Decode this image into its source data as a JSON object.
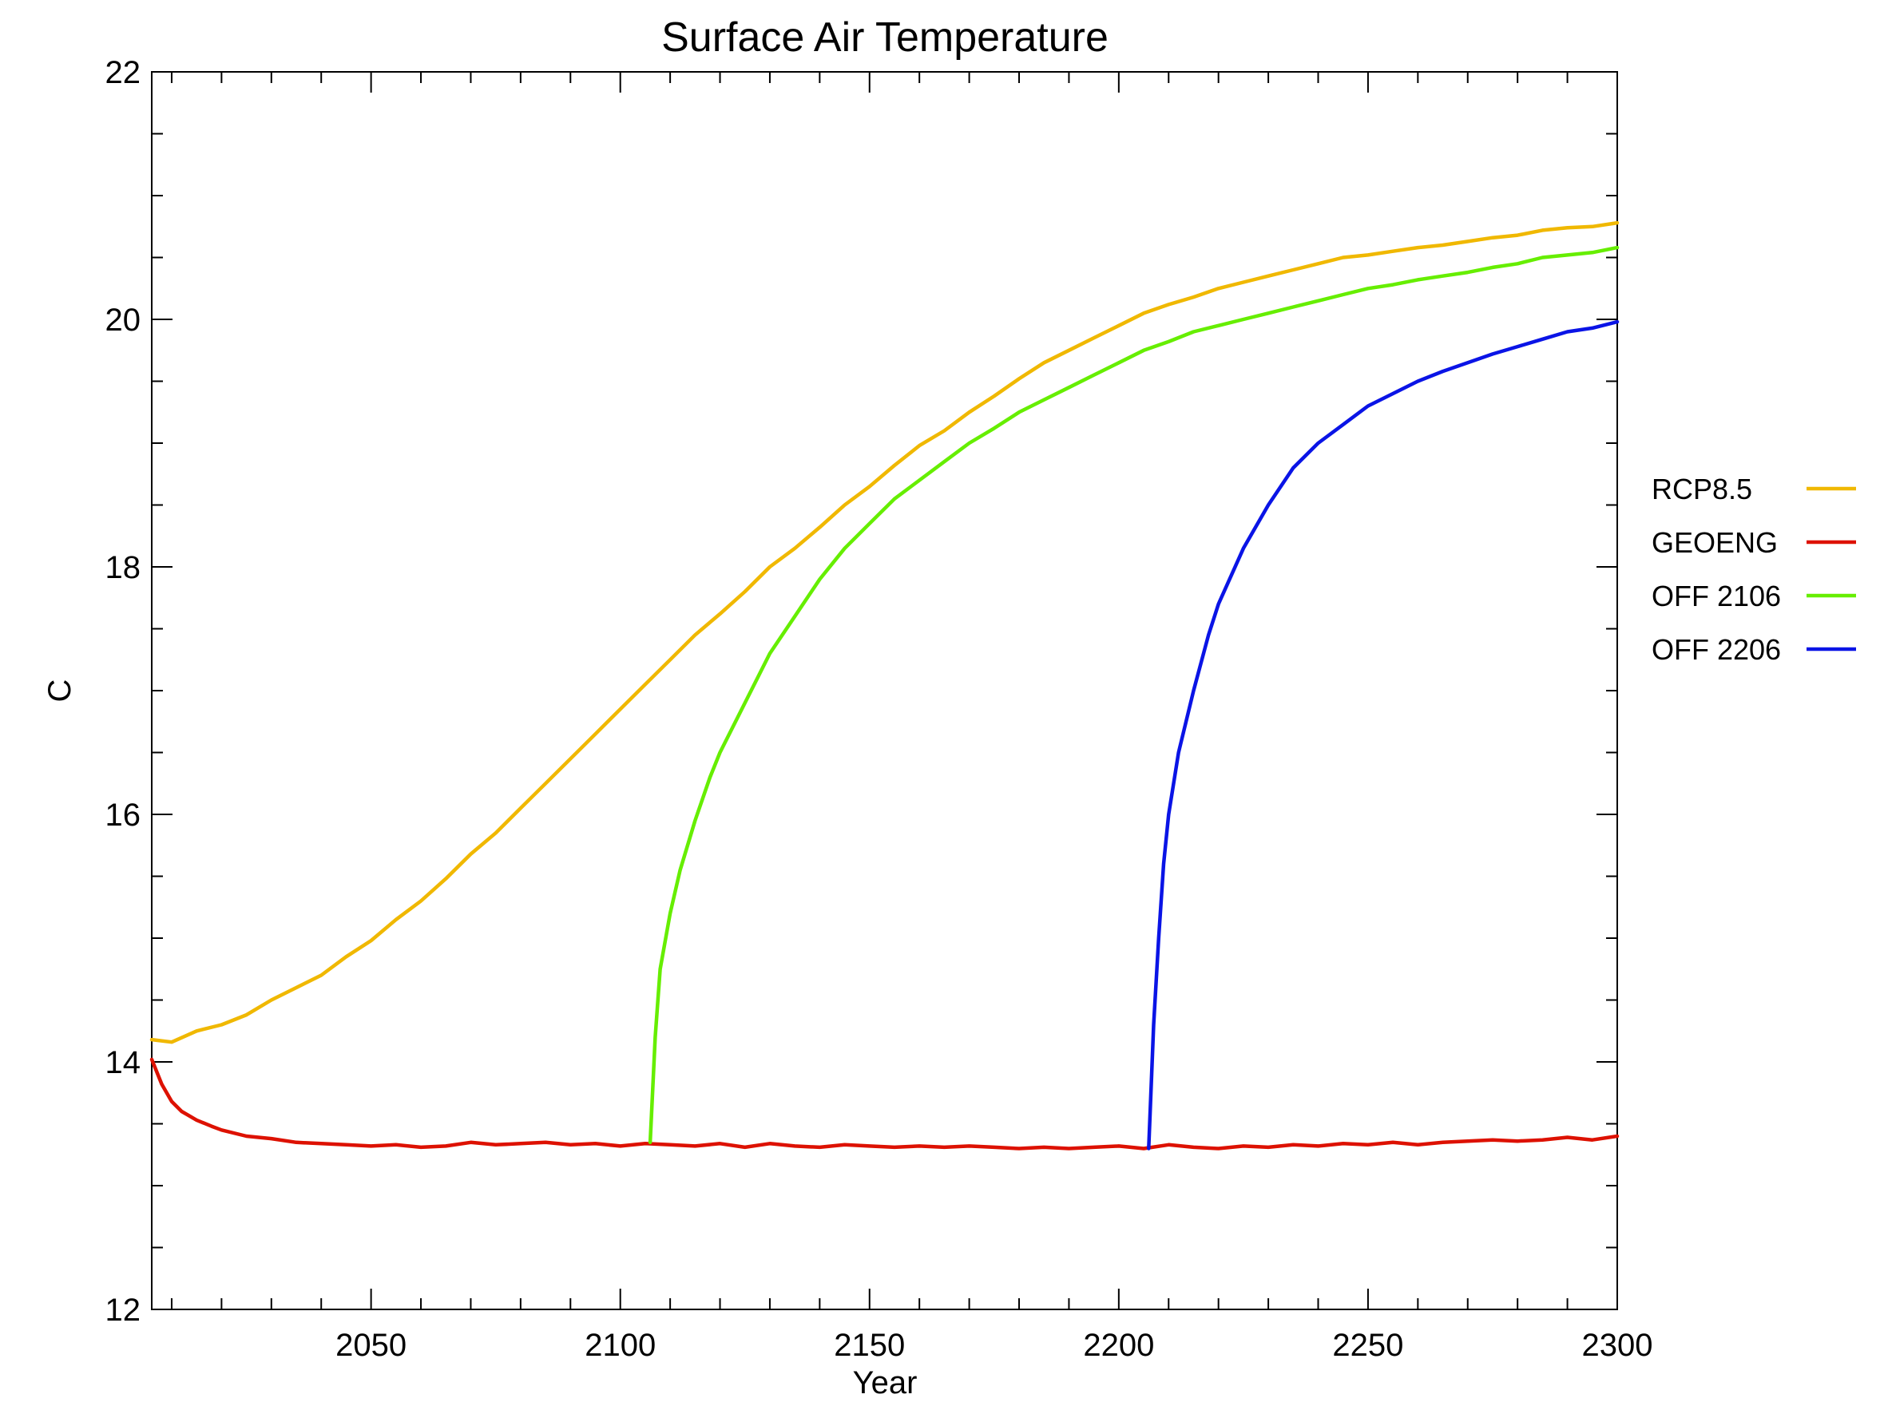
{
  "chart_data": {
    "type": "line",
    "title": "Surface Air Temperature",
    "xlabel": "Year",
    "ylabel": "C",
    "xlim": [
      2006,
      2300
    ],
    "ylim": [
      12,
      22
    ],
    "xticks": [
      2050,
      2100,
      2150,
      2200,
      2250,
      2300
    ],
    "yticks": [
      12,
      14,
      16,
      18,
      20,
      22
    ],
    "grid": false,
    "legend": "right",
    "series": [
      {
        "name": "RCP8.5",
        "color": "#f0b800",
        "x": [
          2006,
          2010,
          2015,
          2020,
          2025,
          2030,
          2035,
          2040,
          2045,
          2050,
          2055,
          2060,
          2065,
          2070,
          2075,
          2080,
          2085,
          2090,
          2095,
          2100,
          2105,
          2110,
          2115,
          2120,
          2125,
          2130,
          2135,
          2140,
          2145,
          2150,
          2155,
          2160,
          2165,
          2170,
          2175,
          2180,
          2185,
          2190,
          2195,
          2200,
          2205,
          2210,
          2215,
          2220,
          2225,
          2230,
          2235,
          2240,
          2245,
          2250,
          2255,
          2260,
          2265,
          2270,
          2275,
          2280,
          2285,
          2290,
          2295,
          2300
        ],
        "y": [
          14.18,
          14.16,
          14.25,
          14.3,
          14.38,
          14.5,
          14.6,
          14.7,
          14.85,
          14.98,
          15.15,
          15.3,
          15.48,
          15.68,
          15.85,
          16.05,
          16.25,
          16.45,
          16.65,
          16.85,
          17.05,
          17.25,
          17.45,
          17.62,
          17.8,
          18.0,
          18.15,
          18.32,
          18.5,
          18.65,
          18.82,
          18.98,
          19.1,
          19.25,
          19.38,
          19.52,
          19.65,
          19.75,
          19.85,
          19.95,
          20.05,
          20.12,
          20.18,
          20.25,
          20.3,
          20.35,
          20.4,
          20.45,
          20.5,
          20.52,
          20.55,
          20.58,
          20.6,
          20.63,
          20.66,
          20.68,
          20.72,
          20.74,
          20.75,
          20.78
        ]
      },
      {
        "name": "GEOENG",
        "color": "#dd1100",
        "x": [
          2006,
          2008,
          2010,
          2012,
          2015,
          2018,
          2020,
          2025,
          2030,
          2035,
          2040,
          2045,
          2050,
          2055,
          2060,
          2065,
          2070,
          2075,
          2080,
          2085,
          2090,
          2095,
          2100,
          2105,
          2110,
          2115,
          2120,
          2125,
          2130,
          2135,
          2140,
          2145,
          2150,
          2155,
          2160,
          2165,
          2170,
          2175,
          2180,
          2185,
          2190,
          2195,
          2200,
          2205,
          2210,
          2215,
          2220,
          2225,
          2230,
          2235,
          2240,
          2245,
          2250,
          2255,
          2260,
          2265,
          2270,
          2275,
          2280,
          2285,
          2290,
          2295,
          2300
        ],
        "y": [
          14.02,
          13.82,
          13.68,
          13.6,
          13.53,
          13.48,
          13.45,
          13.4,
          13.38,
          13.35,
          13.34,
          13.33,
          13.32,
          13.33,
          13.31,
          13.32,
          13.35,
          13.33,
          13.34,
          13.35,
          13.33,
          13.34,
          13.32,
          13.34,
          13.33,
          13.32,
          13.34,
          13.31,
          13.34,
          13.32,
          13.31,
          13.33,
          13.32,
          13.31,
          13.32,
          13.31,
          13.32,
          13.31,
          13.3,
          13.31,
          13.3,
          13.31,
          13.32,
          13.3,
          13.33,
          13.31,
          13.3,
          13.32,
          13.31,
          13.33,
          13.32,
          13.34,
          13.33,
          13.35,
          13.33,
          13.35,
          13.36,
          13.37,
          13.36,
          13.37,
          13.39,
          13.37,
          13.4
        ]
      },
      {
        "name": "OFF 2106",
        "color": "#66ee00",
        "x": [
          2106,
          2107,
          2108,
          2110,
          2112,
          2115,
          2118,
          2120,
          2125,
          2130,
          2135,
          2140,
          2145,
          2150,
          2155,
          2160,
          2165,
          2170,
          2175,
          2180,
          2185,
          2190,
          2195,
          2200,
          2205,
          2210,
          2215,
          2220,
          2225,
          2230,
          2235,
          2240,
          2245,
          2250,
          2255,
          2260,
          2265,
          2270,
          2275,
          2280,
          2285,
          2290,
          2295,
          2300
        ],
        "y": [
          13.35,
          14.2,
          14.75,
          15.2,
          15.55,
          15.95,
          16.3,
          16.5,
          16.9,
          17.3,
          17.6,
          17.9,
          18.15,
          18.35,
          18.55,
          18.7,
          18.85,
          19.0,
          19.12,
          19.25,
          19.35,
          19.45,
          19.55,
          19.65,
          19.75,
          19.82,
          19.9,
          19.95,
          20.0,
          20.05,
          20.1,
          20.15,
          20.2,
          20.25,
          20.28,
          20.32,
          20.35,
          20.38,
          20.42,
          20.45,
          20.5,
          20.52,
          20.54,
          20.58
        ]
      },
      {
        "name": "OFF 2206",
        "color": "#0a14e6",
        "x": [
          2206,
          2207,
          2208,
          2209,
          2210,
          2212,
          2215,
          2218,
          2220,
          2225,
          2230,
          2235,
          2240,
          2245,
          2250,
          2255,
          2260,
          2265,
          2270,
          2275,
          2280,
          2285,
          2290,
          2295,
          2300
        ],
        "y": [
          13.3,
          14.3,
          15.0,
          15.6,
          16.0,
          16.5,
          17.0,
          17.45,
          17.7,
          18.15,
          18.5,
          18.8,
          19.0,
          19.15,
          19.3,
          19.4,
          19.5,
          19.58,
          19.65,
          19.72,
          19.78,
          19.84,
          19.9,
          19.93,
          19.98
        ]
      }
    ]
  }
}
